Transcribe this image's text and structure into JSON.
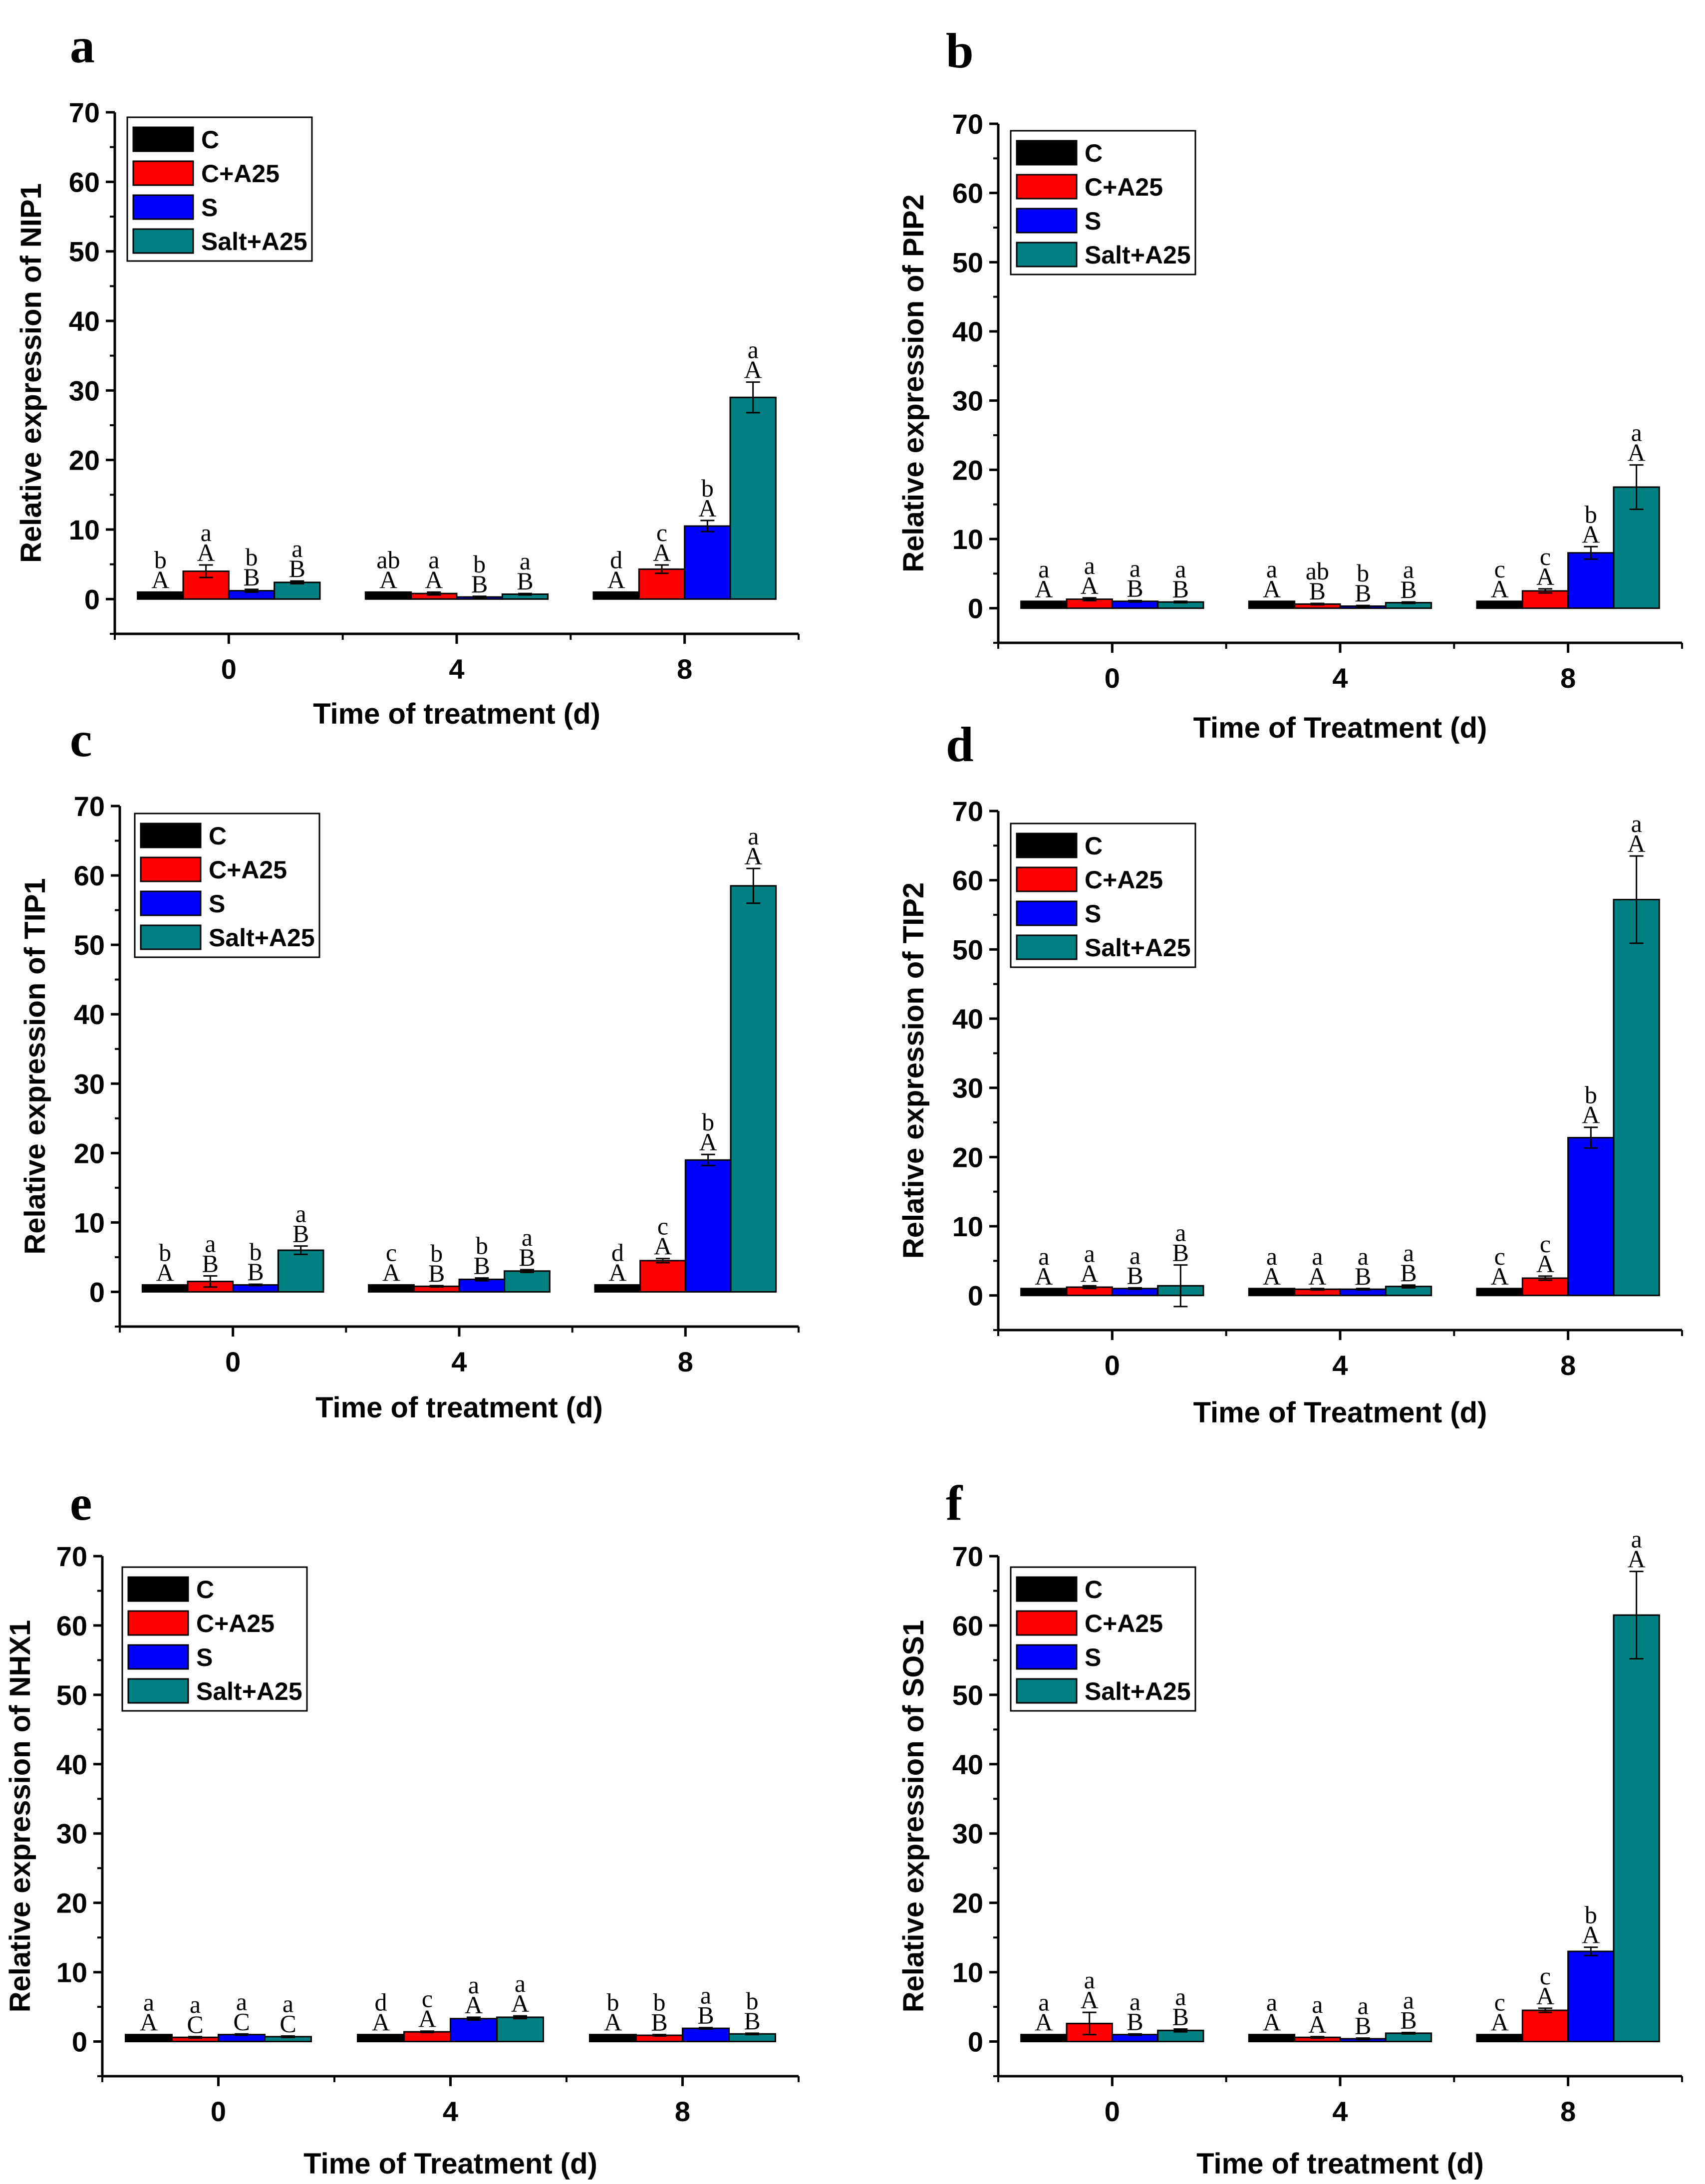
{
  "colors": {
    "C": "#000000",
    "C+A25": "#ff0000",
    "S": "#0000ff",
    "Salt+A25": "#008080"
  },
  "chart_data": [
    {
      "panel": "a",
      "type": "bar",
      "title": "",
      "xlabel": "Time of  treatment (d)",
      "ylabel": "Relative expression of NIP1",
      "ylim": [
        -5,
        70
      ],
      "yticks": [
        "0",
        "10",
        "20",
        "30",
        "40",
        "50",
        "60",
        "70"
      ],
      "categories": [
        "0",
        "4",
        "8"
      ],
      "legend_position": "top-left",
      "series": [
        {
          "name": "C",
          "values": [
            1,
            1,
            1
          ],
          "errors": [
            0,
            0,
            0
          ],
          "sig_lower": [
            "b",
            "ab",
            "d"
          ],
          "sig_upper": [
            "A",
            "A",
            "A"
          ]
        },
        {
          "name": "C+A25",
          "values": [
            4,
            0.8,
            4.3
          ],
          "errors": [
            0.9,
            0.2,
            0.6
          ],
          "sig_lower": [
            "a",
            "a",
            "c"
          ],
          "sig_upper": [
            "A",
            "A",
            "A"
          ]
        },
        {
          "name": "S",
          "values": [
            1.2,
            0.3,
            10.5
          ],
          "errors": [
            0.2,
            0.1,
            0.8
          ],
          "sig_lower": [
            "b",
            "b",
            "b"
          ],
          "sig_upper": [
            "B",
            "B",
            "A"
          ]
        },
        {
          "name": "Salt+A25",
          "values": [
            2.4,
            0.7,
            29
          ],
          "errors": [
            0.2,
            0.1,
            2.2
          ],
          "sig_lower": [
            "a",
            "a",
            "a"
          ],
          "sig_upper": [
            "B",
            "B",
            "A"
          ]
        }
      ]
    },
    {
      "panel": "b",
      "type": "bar",
      "title": "",
      "xlabel": "Time of  Treatment (d)",
      "ylabel": "Relative expression of PIP2",
      "ylim": [
        -5,
        70
      ],
      "yticks": [
        "0",
        "10",
        "20",
        "30",
        "40",
        "50",
        "60",
        "70"
      ],
      "categories": [
        "0",
        "4",
        "8"
      ],
      "legend_position": "top-left",
      "series": [
        {
          "name": "C",
          "values": [
            1,
            1,
            1
          ],
          "errors": [
            0,
            0,
            0
          ],
          "sig_lower": [
            "a",
            "a",
            "c"
          ],
          "sig_upper": [
            "A",
            "A",
            "A"
          ]
        },
        {
          "name": "C+A25",
          "values": [
            1.3,
            0.6,
            2.5
          ],
          "errors": [
            0.2,
            0.1,
            0.3
          ],
          "sig_lower": [
            "a",
            "ab",
            "c"
          ],
          "sig_upper": [
            "A",
            "B",
            "A"
          ]
        },
        {
          "name": "S",
          "values": [
            1,
            0.3,
            8
          ],
          "errors": [
            0.1,
            0.1,
            0.9
          ],
          "sig_lower": [
            "a",
            "b",
            "b"
          ],
          "sig_upper": [
            "B",
            "B",
            "A"
          ]
        },
        {
          "name": "Salt+A25",
          "values": [
            0.9,
            0.8,
            17.5
          ],
          "errors": [
            0.1,
            0.1,
            3.2
          ],
          "sig_lower": [
            "a",
            "a",
            "a"
          ],
          "sig_upper": [
            "B",
            "B",
            "A"
          ]
        }
      ]
    },
    {
      "panel": "c",
      "type": "bar",
      "title": "",
      "xlabel": "Time of treatment (d)",
      "ylabel": "Relative expression of TIP1",
      "ylim": [
        -5,
        70
      ],
      "yticks": [
        "0",
        "10",
        "20",
        "30",
        "40",
        "50",
        "60",
        "70"
      ],
      "categories": [
        "0",
        "4",
        "8"
      ],
      "legend_position": "top-left",
      "series": [
        {
          "name": "C",
          "values": [
            1,
            1,
            1
          ],
          "errors": [
            0,
            0,
            0
          ],
          "sig_lower": [
            "b",
            "c",
            "d"
          ],
          "sig_upper": [
            "A",
            "A",
            "A"
          ]
        },
        {
          "name": "C+A25",
          "values": [
            1.5,
            0.8,
            4.5
          ],
          "errors": [
            0.8,
            0.1,
            0.3
          ],
          "sig_lower": [
            "a",
            "b",
            "c"
          ],
          "sig_upper": [
            "B",
            "B",
            "A"
          ]
        },
        {
          "name": "S",
          "values": [
            1,
            1.8,
            19
          ],
          "errors": [
            0.1,
            0.2,
            0.8
          ],
          "sig_lower": [
            "b",
            "b",
            "b"
          ],
          "sig_upper": [
            "B",
            "B",
            "A"
          ]
        },
        {
          "name": "Salt+A25",
          "values": [
            6,
            3,
            58.5
          ],
          "errors": [
            0.6,
            0.2,
            2.5
          ],
          "sig_lower": [
            "a",
            "a",
            "a"
          ],
          "sig_upper": [
            "B",
            "B",
            "A"
          ]
        }
      ]
    },
    {
      "panel": "d",
      "type": "bar",
      "title": "",
      "xlabel": "Time of  Treatment (d)",
      "ylabel": "Relative expression of TIP2",
      "ylim": [
        -5,
        70
      ],
      "yticks": [
        "0",
        "10",
        "20",
        "30",
        "40",
        "50",
        "60",
        "70"
      ],
      "categories": [
        "0",
        "4",
        "8"
      ],
      "legend_position": "top-left",
      "series": [
        {
          "name": "C",
          "values": [
            1,
            1,
            1
          ],
          "errors": [
            0,
            0,
            0
          ],
          "sig_lower": [
            "a",
            "a",
            "c"
          ],
          "sig_upper": [
            "A",
            "A",
            "A"
          ]
        },
        {
          "name": "C+A25",
          "values": [
            1.2,
            0.9,
            2.5
          ],
          "errors": [
            0.2,
            0.1,
            0.3
          ],
          "sig_lower": [
            "a",
            "a",
            "c"
          ],
          "sig_upper": [
            "A",
            "A",
            "A"
          ]
        },
        {
          "name": "S",
          "values": [
            1,
            0.9,
            22.8
          ],
          "errors": [
            0.1,
            0.1,
            1.5
          ],
          "sig_lower": [
            "a",
            "a",
            "b"
          ],
          "sig_upper": [
            "B",
            "B",
            "A"
          ]
        },
        {
          "name": "Salt+A25",
          "values": [
            1.4,
            1.3,
            57.2
          ],
          "errors": [
            3.0,
            0.2,
            6.3
          ],
          "sig_lower": [
            "a",
            "a",
            "a"
          ],
          "sig_upper": [
            "B",
            "B",
            "A"
          ]
        }
      ]
    },
    {
      "panel": "e",
      "type": "bar",
      "title": "",
      "xlabel": "Time of  Treatment (d)",
      "ylabel": "Relative expression of NHX1",
      "ylim": [
        -5,
        70
      ],
      "yticks": [
        "0",
        "10",
        "20",
        "30",
        "40",
        "50",
        "60",
        "70"
      ],
      "categories": [
        "0",
        "4",
        "8"
      ],
      "legend_position": "top-left",
      "series": [
        {
          "name": "C",
          "values": [
            1,
            1,
            1
          ],
          "errors": [
            0,
            0,
            0
          ],
          "sig_lower": [
            "a",
            "d",
            "b"
          ],
          "sig_upper": [
            "A",
            "A",
            "A"
          ]
        },
        {
          "name": "C+A25",
          "values": [
            0.6,
            1.4,
            0.9
          ],
          "errors": [
            0.1,
            0.1,
            0.1
          ],
          "sig_lower": [
            "a",
            "c",
            "b"
          ],
          "sig_upper": [
            "C",
            "A",
            "B"
          ]
        },
        {
          "name": "S",
          "values": [
            1,
            3.3,
            1.9
          ],
          "errors": [
            0.1,
            0.2,
            0.1
          ],
          "sig_lower": [
            "a",
            "a",
            "a"
          ],
          "sig_upper": [
            "C",
            "A",
            "B"
          ]
        },
        {
          "name": "Salt+A25",
          "values": [
            0.7,
            3.5,
            1.1
          ],
          "errors": [
            0.1,
            0.2,
            0.1
          ],
          "sig_lower": [
            "a",
            "a",
            "b"
          ],
          "sig_upper": [
            "C",
            "A",
            "B"
          ]
        }
      ]
    },
    {
      "panel": "f",
      "type": "bar",
      "title": "",
      "xlabel": "Time of  treatment (d)",
      "ylabel": "Relative expression of SOS1",
      "ylim": [
        -5,
        70
      ],
      "yticks": [
        "0",
        "10",
        "20",
        "30",
        "40",
        "50",
        "60",
        "70"
      ],
      "categories": [
        "0",
        "4",
        "8"
      ],
      "legend_position": "top-left",
      "series": [
        {
          "name": "C",
          "values": [
            1,
            1,
            1
          ],
          "errors": [
            0,
            0,
            0
          ],
          "sig_lower": [
            "a",
            "a",
            "c"
          ],
          "sig_upper": [
            "A",
            "A",
            "A"
          ]
        },
        {
          "name": "C+A25",
          "values": [
            2.6,
            0.6,
            4.5
          ],
          "errors": [
            1.6,
            0.1,
            0.3
          ],
          "sig_lower": [
            "a",
            "a",
            "c"
          ],
          "sig_upper": [
            "A",
            "A",
            "A"
          ]
        },
        {
          "name": "S",
          "values": [
            1,
            0.4,
            13
          ],
          "errors": [
            0.1,
            0.1,
            0.6
          ],
          "sig_lower": [
            "a",
            "a",
            "b"
          ],
          "sig_upper": [
            "B",
            "B",
            "A"
          ]
        },
        {
          "name": "Salt+A25",
          "values": [
            1.6,
            1.2,
            61.5
          ],
          "errors": [
            0.2,
            0.1,
            6.3
          ],
          "sig_lower": [
            "a",
            "a",
            "a"
          ],
          "sig_upper": [
            "B",
            "B",
            "A"
          ]
        }
      ]
    }
  ]
}
